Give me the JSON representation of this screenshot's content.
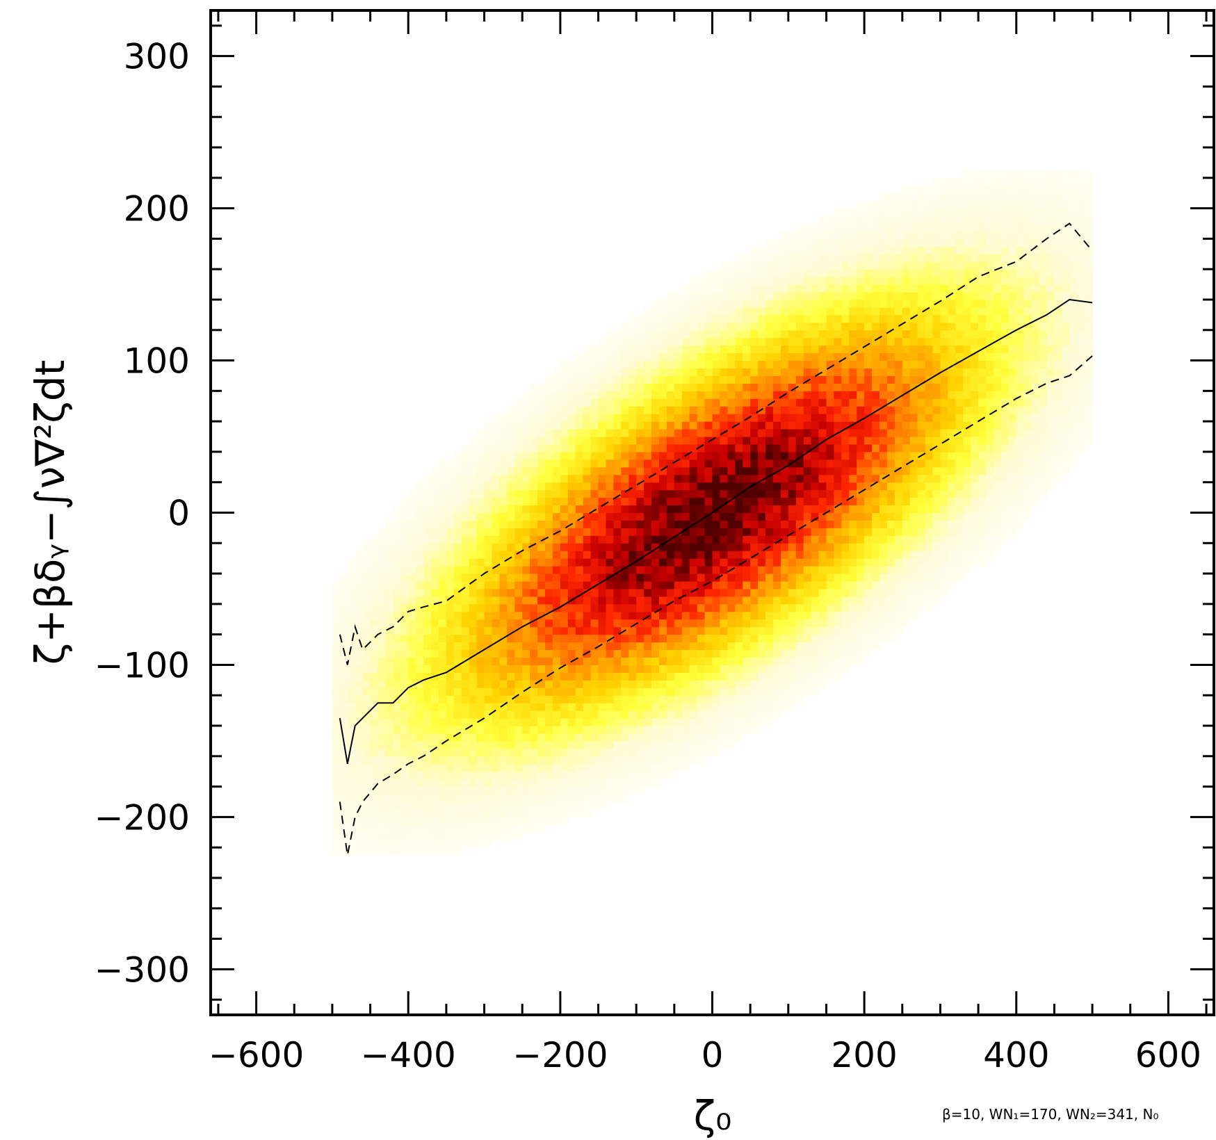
{
  "chart_data": {
    "type": "heatmap",
    "xlabel": "ζ₀",
    "ylabel": "ζ+βδᵧ−∫ν∇²ζdt",
    "annotation": "β=10, WN₁=170, WN₂=341, N₀",
    "xlim": [
      -660,
      660
    ],
    "ylim": [
      -330,
      330
    ],
    "x_ticks": [
      -600,
      -400,
      -200,
      0,
      200,
      400,
      600
    ],
    "y_ticks": [
      -300,
      -200,
      -100,
      0,
      100,
      200,
      300
    ],
    "x_tick_labels": [
      "−600",
      "−400",
      "−200",
      "0",
      "200",
      "400",
      "600"
    ],
    "y_tick_labels": [
      "−300",
      "−200",
      "−100",
      "0",
      "100",
      "200",
      "300"
    ],
    "grid": false,
    "colormap": [
      "#ffffff",
      "#fffbd6",
      "#ffff3c",
      "#ffd200",
      "#ff8c00",
      "#ff2800",
      "#c80000",
      "#500000"
    ],
    "density": {
      "center": [
        0,
        0
      ],
      "slope": 0.27,
      "std_along_x": 180,
      "std_residual": 48,
      "x_extent": [
        -500,
        500
      ]
    },
    "series": [
      {
        "style": "solid",
        "x": [
          -490,
          -480,
          -470,
          -460,
          -440,
          -420,
          -400,
          -380,
          -350,
          -300,
          -250,
          -200,
          -150,
          -100,
          -50,
          0,
          50,
          100,
          150,
          200,
          250,
          300,
          350,
          400,
          440,
          470,
          500
        ],
        "y": [
          -135,
          -165,
          -140,
          -135,
          -125,
          -125,
          -115,
          -110,
          -105,
          -90,
          -75,
          -62,
          -47,
          -32,
          -16,
          0,
          17,
          31,
          48,
          62,
          77,
          92,
          106,
          120,
          130,
          140,
          138
        ]
      },
      {
        "style": "dashed",
        "x": [
          -490,
          -480,
          -470,
          -460,
          -440,
          -420,
          -400,
          -380,
          -350,
          -300,
          -250,
          -200,
          -150,
          -100,
          -50,
          0,
          50,
          100,
          150,
          200,
          250,
          300,
          350,
          400,
          440,
          470,
          500
        ],
        "y": [
          -80,
          -100,
          -75,
          -90,
          -80,
          -75,
          -65,
          -62,
          -58,
          -40,
          -25,
          -12,
          3,
          18,
          33,
          48,
          63,
          79,
          94,
          109,
          124,
          139,
          155,
          165,
          180,
          190,
          172
        ]
      },
      {
        "style": "dashed",
        "x": [
          -490,
          -480,
          -470,
          -460,
          -440,
          -420,
          -400,
          -380,
          -350,
          -300,
          -250,
          -200,
          -150,
          -100,
          -50,
          0,
          50,
          100,
          150,
          200,
          250,
          300,
          350,
          400,
          440,
          470,
          500
        ],
        "y": [
          -190,
          -225,
          -200,
          -190,
          -178,
          -172,
          -165,
          -160,
          -150,
          -135,
          -118,
          -102,
          -88,
          -73,
          -58,
          -45,
          -30,
          -15,
          0,
          15,
          30,
          45,
          60,
          75,
          85,
          90,
          103
        ]
      }
    ]
  }
}
